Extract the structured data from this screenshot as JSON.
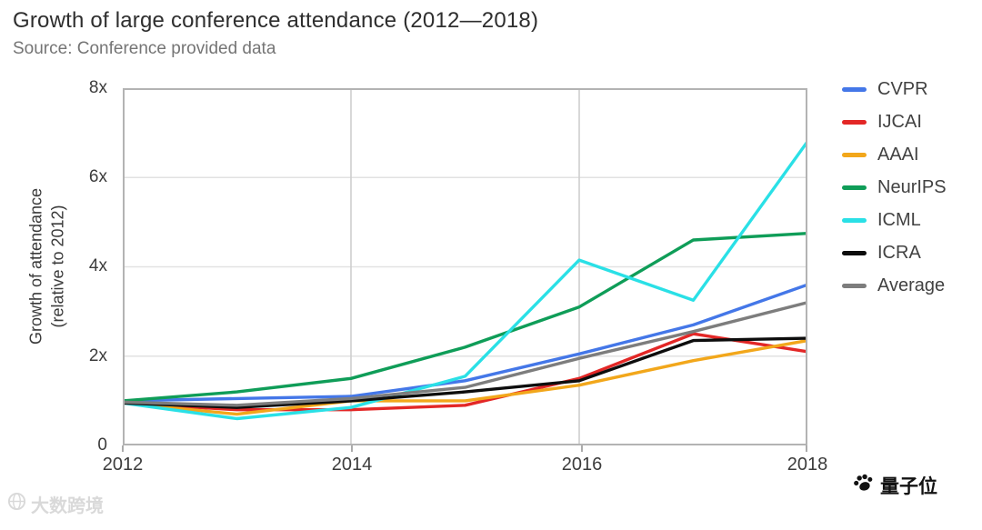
{
  "chart_data": {
    "type": "line",
    "title": "Growth of large conference attendance (2012—2018)",
    "subtitle": "Source: Conference provided data",
    "ylabel_line1": "Growth of attendance",
    "ylabel_line2": "(relative to 2012)",
    "x": [
      2012,
      2013,
      2014,
      2015,
      2016,
      2017,
      2018
    ],
    "xlim": [
      2012,
      2018
    ],
    "ylim": [
      0,
      8
    ],
    "xticks": {
      "values": [
        2012,
        2014,
        2016,
        2018
      ],
      "labels": [
        "2012",
        "2014",
        "2016",
        "2018"
      ]
    },
    "yticks": {
      "values": [
        0,
        2,
        4,
        6,
        8
      ],
      "labels": [
        "0",
        "2x",
        "4x",
        "6x",
        "8x"
      ]
    },
    "grid": true,
    "legend_position": "right",
    "series": [
      {
        "name": "CVPR",
        "color": "#4477e8",
        "values": [
          1.0,
          1.05,
          1.1,
          1.45,
          2.05,
          2.7,
          3.6
        ]
      },
      {
        "name": "IJCAI",
        "color": "#e32726",
        "values": [
          0.95,
          0.8,
          0.8,
          0.9,
          1.5,
          2.5,
          2.1
        ]
      },
      {
        "name": "AAAI",
        "color": "#f2a71b",
        "values": [
          0.95,
          0.7,
          1.0,
          1.0,
          1.35,
          1.9,
          2.35
        ]
      },
      {
        "name": "NeurIPS",
        "color": "#0f9d58",
        "values": [
          1.0,
          1.2,
          1.5,
          2.2,
          3.1,
          4.6,
          4.75
        ]
      },
      {
        "name": "ICML",
        "color": "#2ae0e6",
        "values": [
          0.95,
          0.6,
          0.85,
          1.55,
          4.15,
          3.25,
          6.8
        ]
      },
      {
        "name": "ICRA",
        "color": "#0d0d0d",
        "values": [
          0.95,
          0.85,
          1.0,
          1.2,
          1.45,
          2.35,
          2.4
        ]
      },
      {
        "name": "Average",
        "color": "#7d7d7d",
        "values": [
          0.97,
          0.9,
          1.05,
          1.3,
          1.95,
          2.55,
          3.2
        ]
      }
    ]
  },
  "watermarks": {
    "bottom_left": {
      "text": "大数跨境",
      "icon": "globe-icon"
    },
    "bottom_right": {
      "text": "量子位",
      "icon": "paw-icon"
    }
  }
}
